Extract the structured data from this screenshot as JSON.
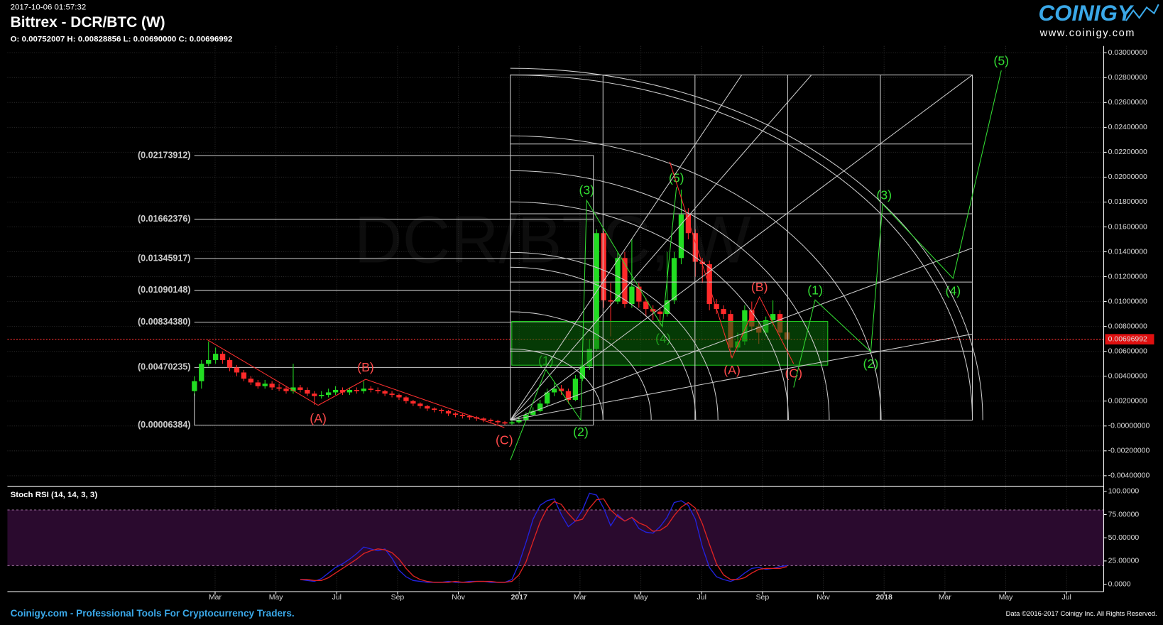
{
  "header": {
    "timestamp": "2017-10-06 01:57:32",
    "title": "Bittrex - DCR/BTC (W)",
    "ohlc": "O: 0.00752007 H: 0.00828856 L: 0.00690000 C: 0.00696992",
    "logo": "COINIGY",
    "logo_url": "www.coinigy.com"
  },
  "footer": {
    "left": "Coinigy.com - Professional Tools For Cryptocurrency Traders.",
    "right": "Data ©2016-2017 Coinigy Inc. All Rights Reserved."
  },
  "chart_data": [
    {
      "type": "candlestick",
      "watermark": "DCR/BTC, W",
      "up_color": "#22dd22",
      "down_color": "#ff2a2a",
      "x": [
        1.32,
        1.552,
        1.784,
        2.016,
        2.248,
        2.48,
        2.712,
        2.944,
        3.176,
        3.408,
        3.64,
        3.872,
        4.104,
        4.336,
        4.568,
        4.8,
        5.032,
        5.264,
        5.496,
        5.728,
        5.96,
        6.192,
        6.424,
        6.656,
        6.888,
        7.12,
        7.352,
        7.584,
        7.816,
        8.048,
        8.28,
        8.512,
        8.744,
        8.976,
        9.208,
        9.44,
        9.672,
        9.904,
        10.136,
        10.368,
        10.6,
        10.832,
        11.064,
        11.296,
        11.528,
        11.76,
        11.992,
        12.224,
        12.456,
        12.688,
        12.92,
        13.152,
        13.384,
        13.616,
        13.848,
        14.08,
        14.312,
        14.544,
        14.776,
        15.008,
        15.24,
        15.472,
        15.704,
        15.936,
        16.168,
        16.4,
        16.632,
        16.864,
        17.096,
        17.328,
        17.56,
        17.792,
        18.024,
        18.256,
        18.488,
        18.72,
        18.952,
        19.184,
        19.416,
        19.648,
        19.88,
        20.112,
        20.344,
        20.576,
        20.808
      ],
      "open": [
        0.0028,
        0.0036,
        0.005,
        0.0053,
        0.0058,
        0.0053,
        0.0047,
        0.0043,
        0.0038,
        0.0035,
        0.0032,
        0.0034,
        0.0031,
        0.003,
        0.0028,
        0.0031,
        0.0029,
        0.0026,
        0.0024,
        0.0025,
        0.0027,
        0.0029,
        0.0027,
        0.0029,
        0.0028,
        0.003,
        0.0029,
        0.0028,
        0.0026,
        0.0025,
        0.0023,
        0.002,
        0.0018,
        0.0016,
        0.0014,
        0.0013,
        0.0012,
        0.001,
        0.0009,
        0.0008,
        0.0007,
        0.0006,
        0.0005,
        0.0004,
        0.0003,
        0.0002,
        0.0003,
        0.0005,
        0.0009,
        0.0012,
        0.0018,
        0.0027,
        0.003,
        0.0028,
        0.0021,
        0.0038,
        0.0048,
        0.0062,
        0.0155,
        0.0101,
        0.01,
        0.0135,
        0.0098,
        0.0112,
        0.01,
        0.0094,
        0.0092,
        0.009,
        0.0101,
        0.0135,
        0.017,
        0.0155,
        0.0132,
        0.013,
        0.0098,
        0.0094,
        0.009,
        0.0063,
        0.0068,
        0.0093,
        0.008,
        0.0075,
        0.0085,
        0.009,
        0.00752007
      ],
      "high": [
        0.004,
        0.0053,
        0.0068,
        0.0063,
        0.006,
        0.0055,
        0.0049,
        0.0045,
        0.004,
        0.0037,
        0.0037,
        0.0036,
        0.0034,
        0.0032,
        0.005,
        0.0033,
        0.0031,
        0.0028,
        0.0028,
        0.003,
        0.0032,
        0.0031,
        0.0031,
        0.0031,
        0.0036,
        0.0032,
        0.0031,
        0.0029,
        0.0028,
        0.0026,
        0.0024,
        0.0021,
        0.0019,
        0.0017,
        0.0015,
        0.0014,
        0.0013,
        0.0011,
        0.001,
        0.0009,
        0.0008,
        0.0007,
        0.0006,
        0.0005,
        0.0004,
        0.0005,
        0.0007,
        0.0011,
        0.0015,
        0.0021,
        0.003,
        0.0035,
        0.0033,
        0.003,
        0.0041,
        0.0052,
        0.007,
        0.0158,
        0.0157,
        0.0115,
        0.014,
        0.014,
        0.015,
        0.0115,
        0.0103,
        0.0097,
        0.0095,
        0.014,
        0.014,
        0.019,
        0.0175,
        0.0158,
        0.0135,
        0.0133,
        0.0102,
        0.0097,
        0.0093,
        0.0075,
        0.0097,
        0.01,
        0.0084,
        0.0088,
        0.0101,
        0.0093,
        0.00828856
      ],
      "low": [
        0.0024,
        0.003,
        0.0048,
        0.005,
        0.005,
        0.0044,
        0.004,
        0.0036,
        0.0033,
        0.003,
        0.003,
        0.0029,
        0.0028,
        0.0026,
        0.0026,
        0.0027,
        0.0024,
        0.0017,
        0.0022,
        0.0023,
        0.0025,
        0.0025,
        0.0025,
        0.0026,
        0.0026,
        0.0027,
        0.0026,
        0.0024,
        0.0023,
        0.0021,
        0.0018,
        0.0016,
        0.0014,
        0.0012,
        0.0011,
        0.001,
        0.0008,
        0.0007,
        0.0006,
        0.0005,
        0.0004,
        0.0003,
        0.0002,
        0.0001,
        0.0001,
        0.0001,
        0.0002,
        0.0004,
        0.0008,
        0.0011,
        0.0016,
        0.0024,
        0.0025,
        0.0018,
        0.002,
        0.0036,
        0.0045,
        0.006,
        0.0095,
        0.0072,
        0.0098,
        0.0095,
        0.0095,
        0.0095,
        0.0088,
        0.0085,
        0.008,
        0.0088,
        0.0098,
        0.013,
        0.015,
        0.012,
        0.0115,
        0.0093,
        0.009,
        0.0086,
        0.0055,
        0.006,
        0.0065,
        0.0076,
        0.0066,
        0.0072,
        0.008,
        0.0072,
        0.0069
      ],
      "close": [
        0.0036,
        0.005,
        0.0053,
        0.0058,
        0.0053,
        0.0047,
        0.0043,
        0.0038,
        0.0035,
        0.0032,
        0.0034,
        0.0031,
        0.003,
        0.0028,
        0.0031,
        0.0029,
        0.0026,
        0.0024,
        0.0025,
        0.0027,
        0.0029,
        0.0027,
        0.0029,
        0.0028,
        0.003,
        0.0029,
        0.0028,
        0.0026,
        0.0025,
        0.0023,
        0.002,
        0.0018,
        0.0016,
        0.0014,
        0.0013,
        0.0012,
        0.001,
        0.0009,
        0.0008,
        0.0007,
        0.0006,
        0.0005,
        0.0004,
        0.0003,
        0.0002,
        0.0003,
        0.0005,
        0.0009,
        0.0012,
        0.0018,
        0.0027,
        0.003,
        0.0028,
        0.0021,
        0.0038,
        0.0048,
        0.0062,
        0.0155,
        0.0101,
        0.01,
        0.0135,
        0.0098,
        0.0112,
        0.01,
        0.0094,
        0.0092,
        0.009,
        0.0101,
        0.0135,
        0.017,
        0.0155,
        0.0132,
        0.013,
        0.0098,
        0.0094,
        0.009,
        0.0063,
        0.0068,
        0.0093,
        0.008,
        0.0075,
        0.0085,
        0.009,
        0.0075,
        0.00696992
      ],
      "xlim": [
        -4.83,
        31.22
      ],
      "xticks": [
        {
          "value": 2,
          "label": "Mar"
        },
        {
          "value": 4,
          "label": "May"
        },
        {
          "value": 6,
          "label": "Jul"
        },
        {
          "value": 8,
          "label": "Sep"
        },
        {
          "value": 10,
          "label": "Nov"
        },
        {
          "value": 12,
          "label": "2017"
        },
        {
          "value": 14,
          "label": "Mar"
        },
        {
          "value": 16,
          "label": "May"
        },
        {
          "value": 18,
          "label": "Jul"
        },
        {
          "value": 20,
          "label": "Sep"
        },
        {
          "value": 22,
          "label": "Nov"
        },
        {
          "value": 24,
          "label": "2018"
        },
        {
          "value": 26,
          "label": "Mar"
        },
        {
          "value": 28,
          "label": "May"
        },
        {
          "value": 30,
          "label": "Jul"
        }
      ],
      "ylim": [
        -0.00484,
        0.03054
      ],
      "yticks": [
        {
          "value": -0.004,
          "label": "-0.00400000"
        },
        {
          "value": -0.002,
          "label": "-0.00200000"
        },
        {
          "value": 0,
          "label": "-0.00000000"
        },
        {
          "value": 0.002,
          "label": "0.00200000"
        },
        {
          "value": 0.004,
          "label": "0.00400000"
        },
        {
          "value": 0.006,
          "label": "0.00600000"
        },
        {
          "value": 0.008,
          "label": "0.00800000"
        },
        {
          "value": 0.01,
          "label": "0.01000000"
        },
        {
          "value": 0.012,
          "label": "0.01200000"
        },
        {
          "value": 0.014,
          "label": "0.01400000"
        },
        {
          "value": 0.016,
          "label": "0.01600000"
        },
        {
          "value": 0.018,
          "label": "0.01800000"
        },
        {
          "value": 0.02,
          "label": "0.02000000"
        },
        {
          "value": 0.022,
          "label": "0.02200000"
        },
        {
          "value": 0.024,
          "label": "0.02400000"
        },
        {
          "value": 0.026,
          "label": "0.02600000"
        },
        {
          "value": 0.028,
          "label": "0.02800000"
        },
        {
          "value": 0.03,
          "label": "0.03000000"
        }
      ],
      "grid": true,
      "last_price": {
        "value": 0.00696992,
        "label": "0.00696992"
      },
      "levels": [
        {
          "value": 0.02173912,
          "label": "(0.02173912)"
        },
        {
          "value": 0.01662376,
          "label": "(0.01662376)"
        },
        {
          "value": 0.01345917,
          "label": "(0.01345917)"
        },
        {
          "value": 0.01090148,
          "label": "(0.01090148)"
        },
        {
          "value": 0.0083438,
          "label": "(0.00834380)"
        },
        {
          "value": 0.00470235,
          "label": "(0.00470235)"
        },
        {
          "value": 6.384e-05,
          "label": "(0.00006384)"
        }
      ],
      "annotations": [
        {
          "text": "(1)",
          "color": "#33dd33"
        },
        {
          "text": "(1)",
          "color": "#33dd33"
        },
        {
          "text": "(2)",
          "color": "#33dd33"
        },
        {
          "text": "(2)",
          "color": "#33dd33"
        },
        {
          "text": "(3)",
          "color": "#33dd33"
        },
        {
          "text": "(3)",
          "color": "#33dd33"
        },
        {
          "text": "(4)",
          "color": "#33dd33"
        },
        {
          "text": "(4)",
          "color": "#33dd33"
        },
        {
          "text": "(5)",
          "color": "#33dd33"
        },
        {
          "text": "(5)",
          "color": "#33dd33"
        },
        {
          "text": "(A)",
          "color": "#ff4a4a"
        },
        {
          "text": "(A)",
          "color": "#ff4a4a"
        },
        {
          "text": "(B)",
          "color": "#ff4a4a"
        },
        {
          "text": "(B)",
          "color": "#ff4a4a"
        },
        {
          "text": "(C)",
          "color": "#ff4a4a"
        },
        {
          "text": "(C)",
          "color": "#ff4a4a"
        }
      ]
    },
    {
      "type": "line",
      "title": "Stoch RSI (14, 14, 3, 3)",
      "x": [
        4.8,
        5.032,
        5.264,
        5.496,
        5.728,
        5.96,
        6.192,
        6.424,
        6.656,
        6.888,
        7.12,
        7.352,
        7.584,
        7.816,
        8.048,
        8.28,
        8.512,
        8.744,
        8.976,
        9.208,
        9.44,
        9.672,
        9.904,
        10.136,
        10.368,
        10.6,
        10.832,
        11.064,
        11.296,
        11.528,
        11.76,
        11.992,
        12.224,
        12.456,
        12.688,
        12.92,
        13.152,
        13.384,
        13.616,
        13.848,
        14.08,
        14.312,
        14.544,
        14.776,
        15.008,
        15.24,
        15.472,
        15.704,
        15.936,
        16.168,
        16.4,
        16.632,
        16.864,
        17.096,
        17.328,
        17.56,
        17.792,
        18.024,
        18.256,
        18.488,
        18.72,
        18.952,
        19.184,
        19.416,
        19.648,
        19.88,
        20.112,
        20.344,
        20.576,
        20.808
      ],
      "series": [
        {
          "color": "#2222dd",
          "values": [
            5,
            4,
            3,
            6,
            12,
            18,
            22,
            27,
            33,
            40,
            38,
            36,
            38,
            28,
            15,
            8,
            4,
            3,
            2,
            2,
            2,
            3,
            2,
            2,
            3,
            3,
            3,
            2,
            2,
            2,
            5,
            22,
            45,
            70,
            85,
            90,
            92,
            75,
            62,
            68,
            80,
            98,
            96,
            82,
            63,
            75,
            68,
            72,
            60,
            56,
            55,
            62,
            72,
            88,
            90,
            85,
            70,
            40,
            18,
            8,
            5,
            3,
            6,
            12,
            17,
            18,
            16,
            17,
            19,
            20
          ]
        },
        {
          "color": "#dd2222",
          "values": [
            5,
            5,
            4,
            4,
            7,
            12,
            17,
            22,
            27,
            33,
            36,
            38,
            37,
            34,
            27,
            17,
            9,
            5,
            3,
            2,
            2,
            2,
            3,
            2,
            2,
            3,
            3,
            3,
            2,
            2,
            3,
            10,
            24,
            46,
            67,
            82,
            89,
            86,
            76,
            68,
            70,
            82,
            91,
            92,
            80,
            73,
            68,
            72,
            66,
            63,
            57,
            58,
            63,
            74,
            83,
            88,
            82,
            65,
            43,
            22,
            10,
            5,
            5,
            7,
            12,
            16,
            17,
            17,
            17,
            19
          ]
        }
      ],
      "xlim": [
        -4.83,
        31.22
      ],
      "ylim": [
        -8,
        104
      ],
      "yticks": [
        {
          "value": 0,
          "label": "0.0000"
        },
        {
          "value": 25,
          "label": "25.00000"
        },
        {
          "value": 50,
          "label": "50.00000"
        },
        {
          "value": 75,
          "label": "75.00000"
        },
        {
          "value": 100,
          "label": "100.0000"
        }
      ],
      "bands": [
        20,
        80
      ],
      "band_color": "#2a0a2e"
    }
  ]
}
